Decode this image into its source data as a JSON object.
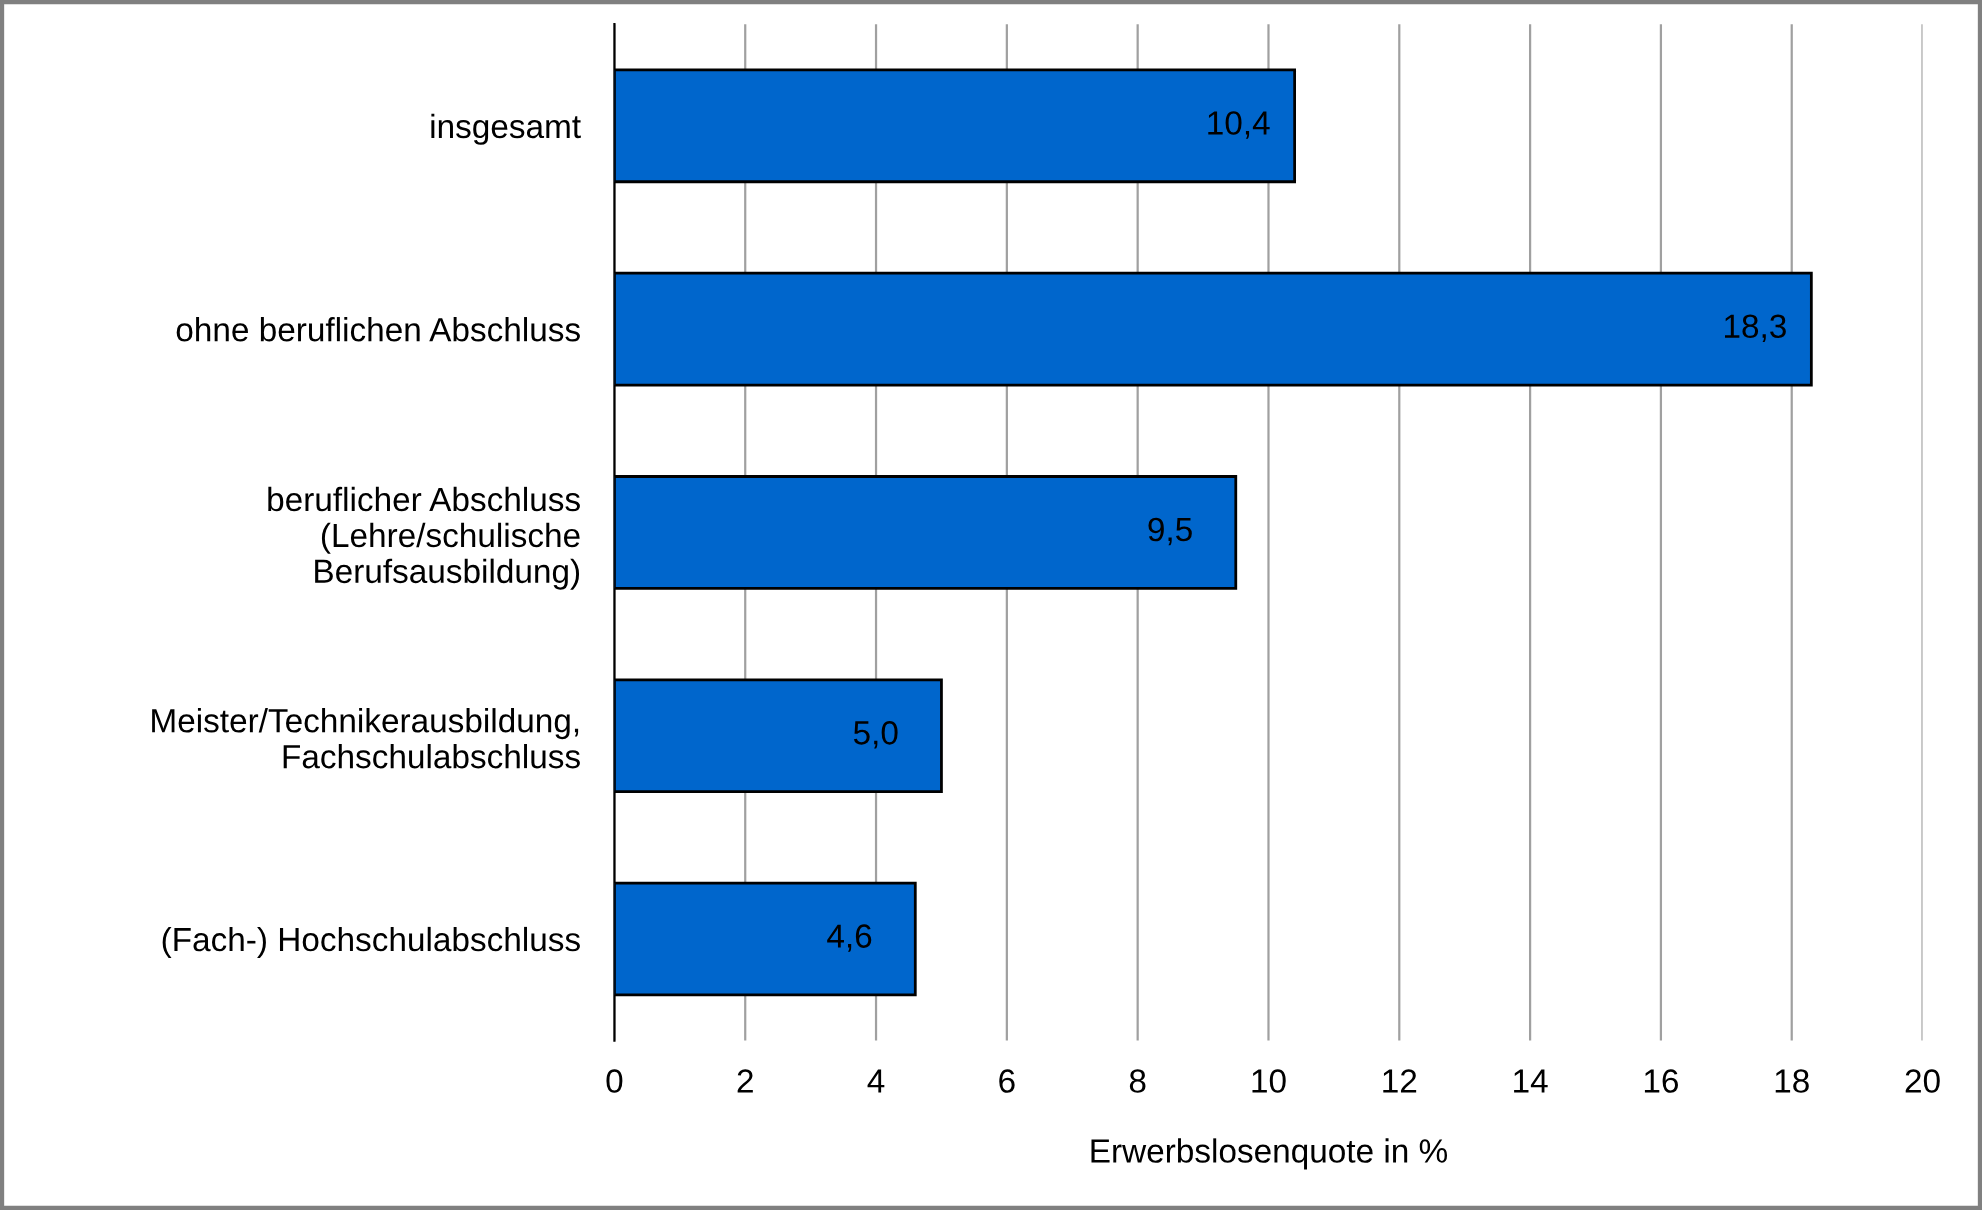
{
  "chart_data": {
    "type": "bar",
    "orientation": "horizontal",
    "categories": [
      "insgesamt",
      "ohne beruflichen Abschluss",
      "beruflicher Abschluss\n(Lehre/schulische\nBerufsausbildung)",
      "Meister/Technikerausbildung,\nFachschulabschluss",
      "(Fach-) Hochschulabschluss"
    ],
    "values": [
      10.4,
      18.3,
      9.5,
      5.0,
      4.6
    ],
    "value_labels": [
      "10,4",
      "18,3",
      "9,5",
      "5,0",
      "4,6"
    ],
    "color": "#0066cc",
    "xlabel": "Erwerbslosenquote in %",
    "xlim": [
      0,
      20
    ],
    "xticks": [
      0,
      2,
      4,
      6,
      8,
      10,
      12,
      14,
      16,
      18,
      20
    ],
    "grid": "x",
    "legend": false
  }
}
